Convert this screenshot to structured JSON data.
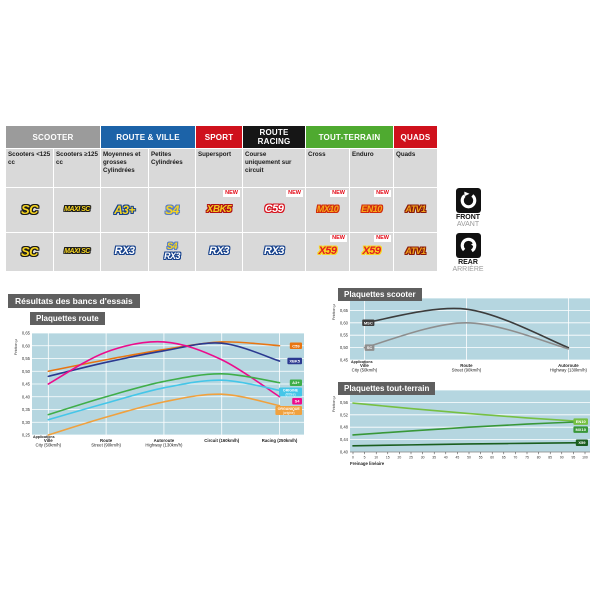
{
  "page": {
    "results_title": "Résultats des bancs d'essais"
  },
  "table": {
    "new_label": "NEW",
    "front_label": "FRONT",
    "front_sublabel": "AVANT",
    "rear_label": "REAR",
    "rear_sublabel": "ARRIÈRE",
    "groups": [
      {
        "label": "SCOOTER",
        "color": "#9b9b9b"
      },
      {
        "label": "ROUTE & VILLE",
        "color": "#1c63a8"
      },
      {
        "label": "SPORT",
        "color": "#cf111c"
      },
      {
        "label": "ROUTE RACING",
        "color": "#161616"
      },
      {
        "label": "TOUT-TERRAIN",
        "color": "#4faa30"
      },
      {
        "label": "QUADS",
        "color": "#cf111c"
      }
    ],
    "subheaders": [
      "Scooters <125 cc",
      "Scooters ≥125 cc",
      "Moyennes et grosses Cylindrées",
      "Petites Cylindrées",
      "Supersport",
      "Course uniquement sur circuit",
      "Cross",
      "Enduro",
      "Quads"
    ],
    "front_cells": [
      {
        "new": false,
        "items": [
          {
            "label": "SC",
            "fg": "#f7d521",
            "outline": "#1a1a1a",
            "size": 13
          }
        ]
      },
      {
        "new": false,
        "items": [
          {
            "label": "MAXI SC",
            "fg": "#f7d521",
            "outline": "#1a1a1a",
            "size": 7
          }
        ]
      },
      {
        "new": false,
        "items": [
          {
            "label": "A3+",
            "fg": "#f7d521",
            "outline": "#16418c",
            "size": 12
          }
        ]
      },
      {
        "new": false,
        "items": [
          {
            "label": "S4",
            "fg": "#f7d521",
            "outline": "#5b7fc4",
            "size": 12
          }
        ]
      },
      {
        "new": true,
        "items": [
          {
            "label": "XBK5",
            "fg": "#f3c71d",
            "outline": "#b01016",
            "size": 10
          }
        ]
      },
      {
        "new": true,
        "items": [
          {
            "label": "C59",
            "fg": "#ffffff",
            "outline": "#d6121d",
            "size": 11
          }
        ]
      },
      {
        "new": true,
        "items": [
          {
            "label": "MX10",
            "fg": "#f7a81b",
            "outline": "#d02a0e",
            "size": 9
          }
        ]
      },
      {
        "new": true,
        "items": [
          {
            "label": "EN10",
            "fg": "#f7a81b",
            "outline": "#d02a0e",
            "size": 9
          }
        ]
      },
      {
        "new": false,
        "items": [
          {
            "label": "ATV1",
            "fg": "#f0a11a",
            "outline": "#8a1a0a",
            "size": 9
          }
        ]
      }
    ],
    "rear_cells": [
      {
        "new": false,
        "items": [
          {
            "label": "SC",
            "fg": "#f7d521",
            "outline": "#1a1a1a",
            "size": 13
          }
        ]
      },
      {
        "new": false,
        "items": [
          {
            "label": "MAXI SC",
            "fg": "#f7d521",
            "outline": "#1a1a1a",
            "size": 7
          }
        ]
      },
      {
        "new": false,
        "items": [
          {
            "label": "RX3",
            "fg": "#ffffff",
            "outline": "#16418c",
            "size": 11
          }
        ]
      },
      {
        "new": false,
        "items": [
          {
            "label": "S4",
            "fg": "#f7d521",
            "outline": "#5b7fc4",
            "size": 9
          },
          {
            "label": "RX3",
            "fg": "#ffffff",
            "outline": "#16418c",
            "size": 9
          }
        ]
      },
      {
        "new": false,
        "items": [
          {
            "label": "RX3",
            "fg": "#ffffff",
            "outline": "#16418c",
            "size": 11
          }
        ]
      },
      {
        "new": false,
        "items": [
          {
            "label": "RX3",
            "fg": "#ffffff",
            "outline": "#16418c",
            "size": 11
          }
        ]
      },
      {
        "new": true,
        "items": [
          {
            "label": "X59",
            "fg": "#e21b22",
            "outline": "#f7d521",
            "size": 11
          }
        ]
      },
      {
        "new": true,
        "items": [
          {
            "label": "X59",
            "fg": "#e21b22",
            "outline": "#f7d521",
            "size": 11
          }
        ]
      },
      {
        "new": false,
        "items": [
          {
            "label": "ATV1",
            "fg": "#f0a11a",
            "outline": "#8a1a0a",
            "size": 9
          }
        ]
      }
    ]
  },
  "chart_data": [
    {
      "type": "line",
      "title": "Plaquettes route",
      "x_type": "category",
      "xlabel": "Applications",
      "ylabel": "Friction µ",
      "ylim": [
        0.25,
        0.65
      ],
      "ystep": 0.05,
      "grid": true,
      "legend_side": "end",
      "bg": "#b5d6e0",
      "categories": [
        {
          "fr": "Ville",
          "en": "City",
          "speed": "(50km/h)"
        },
        {
          "fr": "Route",
          "en": "Street",
          "speed": "(90km/h)"
        },
        {
          "fr": "Autoroute",
          "en": "Highway",
          "speed": "(130km/h)"
        },
        {
          "fr": "Circuit (160km/h)",
          "en": "",
          "speed": ""
        },
        {
          "fr": "Racing (250km/h)",
          "en": "",
          "speed": ""
        }
      ],
      "series": [
        {
          "name": "C59",
          "color": "#e87511",
          "values": [
            0.5,
            0.545,
            0.585,
            0.615,
            0.6
          ]
        },
        {
          "name": "XBK5",
          "color": "#2b3990",
          "values": [
            0.48,
            0.535,
            0.58,
            0.61,
            0.54
          ]
        },
        {
          "name": "S4",
          "color": "#ec0c8c",
          "values": [
            0.45,
            0.575,
            0.615,
            0.545,
            0.4
          ]
        },
        {
          "name": "A3+",
          "color": "#3fae49",
          "values": [
            0.33,
            0.4,
            0.46,
            0.49,
            0.455
          ]
        },
        {
          "name": "ORIGINE (frittée)",
          "color": "#45c6e8",
          "values": [
            0.31,
            0.375,
            0.435,
            0.465,
            0.425
          ]
        },
        {
          "name": "ORGANIQUE (origine)",
          "color": "#f0a13e",
          "values": [
            0.25,
            0.32,
            0.38,
            0.41,
            0.365
          ]
        }
      ]
    },
    {
      "type": "line",
      "title": "Plaquettes scooter",
      "x_type": "category",
      "xlabel": "Applications",
      "ylabel": "Friction µ",
      "ylim": [
        0.45,
        0.7
      ],
      "ystep": 0.05,
      "grid": true,
      "legend_side": "start",
      "bg": "#b5d6e0",
      "categories": [
        {
          "fr": "Ville",
          "en": "City",
          "speed": "(50km/h)"
        },
        {
          "fr": "Route",
          "en": "Street",
          "speed": "(90km/h)"
        },
        {
          "fr": "Autoroute",
          "en": "Highway",
          "speed": "(130km/h)"
        }
      ],
      "series": [
        {
          "name": "MSC",
          "color": "#3c3c3c",
          "values": [
            0.6,
            0.655,
            0.5
          ]
        },
        {
          "name": "SC",
          "color": "#8e8e8e",
          "values": [
            0.5,
            0.6,
            0.495
          ]
        }
      ]
    },
    {
      "type": "line",
      "title": "Plaquettes tout-terrain",
      "x_type": "linear",
      "xlabel": "Freinage linéaire",
      "ylabel": "Friction µ",
      "xlim": [
        0,
        100
      ],
      "xstep": 5,
      "ylim": [
        0.4,
        0.6
      ],
      "ystep": 0.04,
      "grid": true,
      "legend_side": "end",
      "bg": "#b5d6e0",
      "series": [
        {
          "name": "EN10",
          "color": "#76c043",
          "x": [
            0,
            25,
            50,
            75,
            100
          ],
          "values": [
            0.558,
            0.54,
            0.524,
            0.51,
            0.498
          ]
        },
        {
          "name": "MX10",
          "color": "#389738",
          "x": [
            0,
            25,
            50,
            75,
            100
          ],
          "values": [
            0.455,
            0.468,
            0.48,
            0.49,
            0.498
          ]
        },
        {
          "name": "X59",
          "color": "#1b5e20",
          "x": [
            0,
            25,
            50,
            75,
            100
          ],
          "values": [
            0.42,
            0.423,
            0.426,
            0.428,
            0.43
          ]
        }
      ]
    }
  ]
}
